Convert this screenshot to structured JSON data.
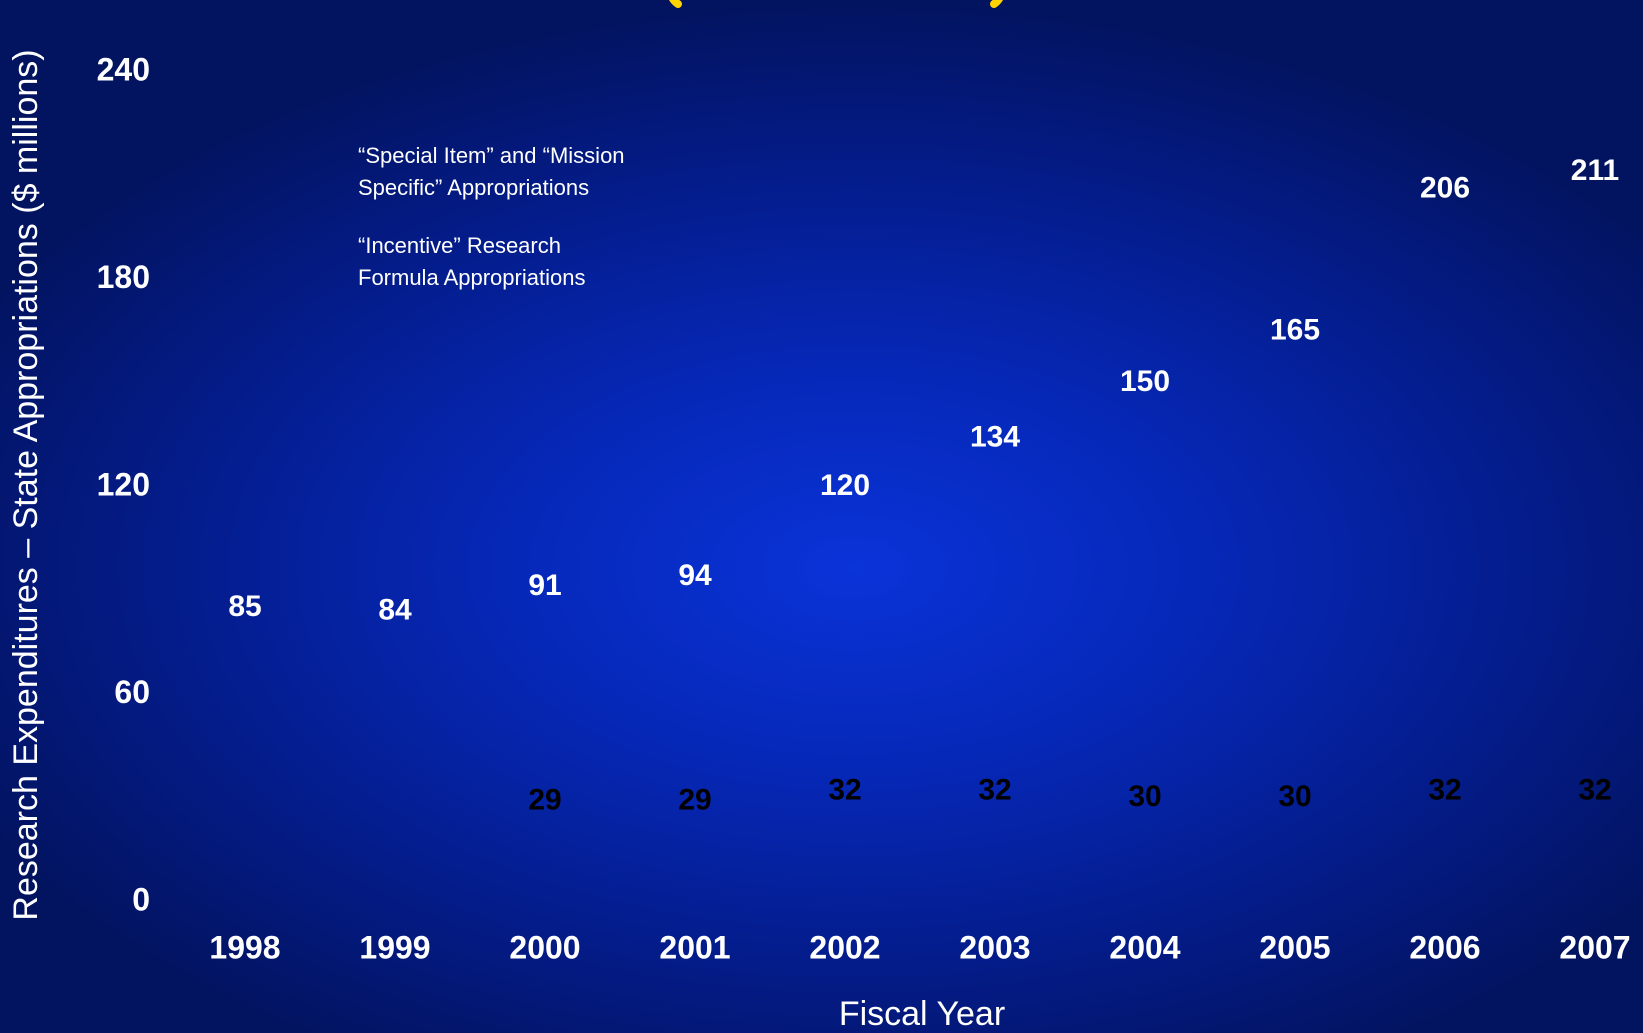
{
  "colors": {
    "background": "#0628b8",
    "text_white": "#ffffff",
    "text_black": "#000000",
    "title_accent": "#ffff00"
  },
  "chart_data": {
    "type": "bar",
    "title": "",
    "xlabel": "Fiscal Year",
    "ylabel": "Research Expenditures – State Appropriations ($ millions)",
    "ylim": [
      0,
      240
    ],
    "yticks": [
      0,
      60,
      120,
      180,
      240
    ],
    "grid": false,
    "categories": [
      "1998",
      "1999",
      "2000",
      "2001",
      "2002",
      "2003",
      "2004",
      "2005",
      "2006",
      "2007"
    ],
    "series": [
      {
        "name": "“Special Item” and “Mission Specific” Appropriations",
        "values": [
          85,
          84,
          91,
          94,
          120,
          134,
          150,
          165,
          206,
          211
        ],
        "label_color": "#ffffff"
      },
      {
        "name": "“Incentive” Research Formula Appropriations",
        "values": [
          null,
          null,
          29,
          29,
          32,
          32,
          30,
          30,
          32,
          32
        ],
        "label_color": "#000000"
      }
    ],
    "legend": {
      "placement": "top-left",
      "entries": [
        [
          "“Special Item” and “Mission",
          " Specific” Appropriations"
        ],
        [
          "“Incentive” Research",
          " Formula Appropriations"
        ]
      ]
    }
  }
}
